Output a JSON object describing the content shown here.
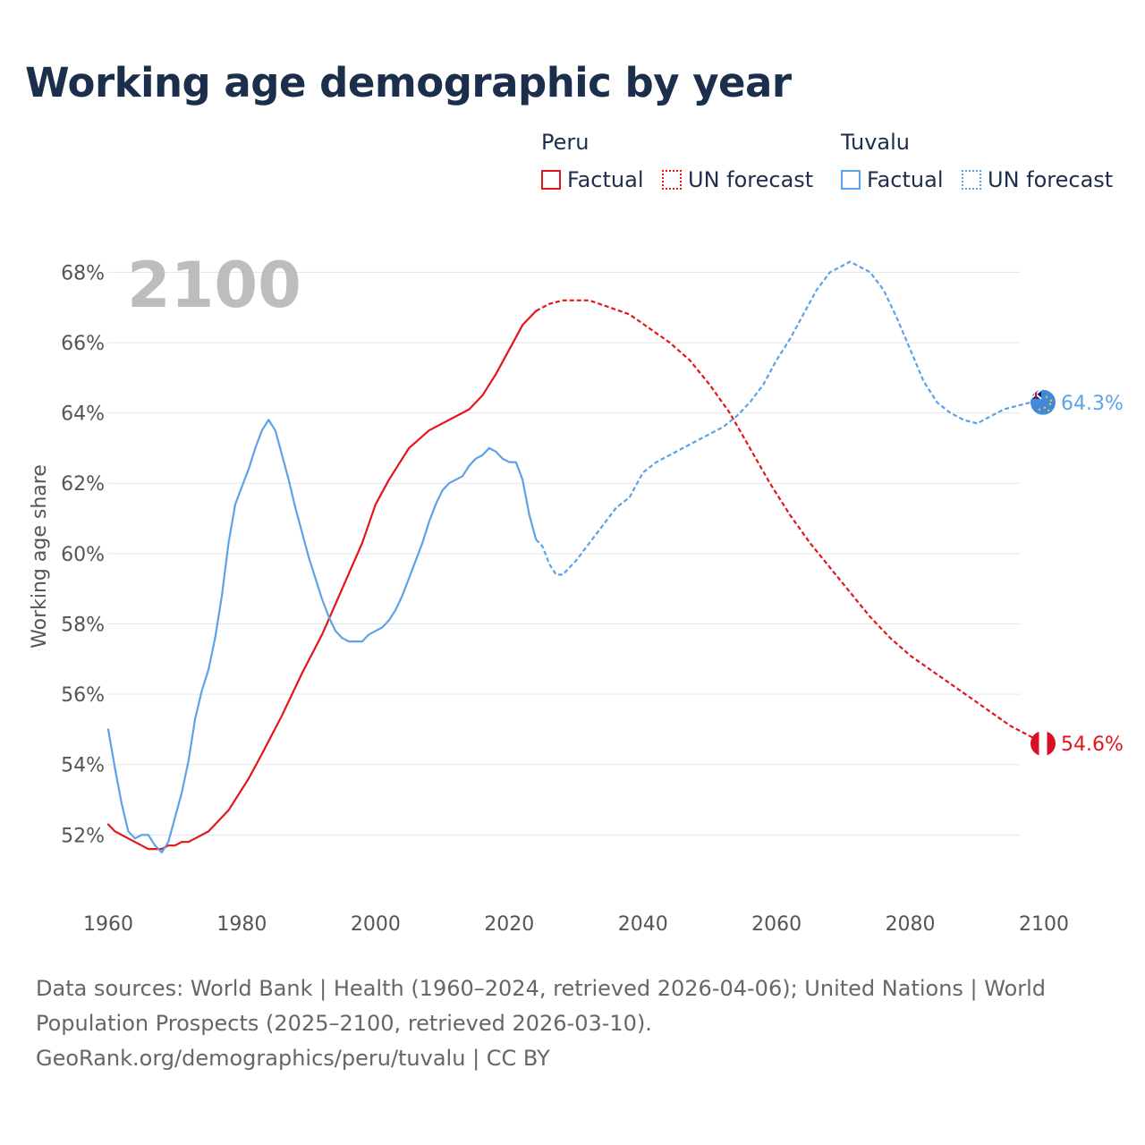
{
  "chart_data": {
    "type": "line",
    "title": "Working age demographic by year",
    "ylabel": "Working age share",
    "xlabel": "",
    "xlim": [
      1960,
      2100
    ],
    "ylim": [
      50.0,
      69.0
    ],
    "x_ticks": [
      "1960",
      "1980",
      "2000",
      "2020",
      "2040",
      "2060",
      "2080",
      "2100"
    ],
    "y_ticks": [
      {
        "value": 52,
        "label": "52%"
      },
      {
        "value": 54,
        "label": "54%"
      },
      {
        "value": 56,
        "label": "56%"
      },
      {
        "value": 58,
        "label": "58%"
      },
      {
        "value": 60,
        "label": "60%"
      },
      {
        "value": 62,
        "label": "62%"
      },
      {
        "value": 64,
        "label": "64%"
      },
      {
        "value": 66,
        "label": "66%"
      },
      {
        "value": 68,
        "label": "68%"
      }
    ],
    "current_year": "2100",
    "legend": {
      "peru_name": "Peru",
      "tuvalu_name": "Tuvalu",
      "factual_label": "Factual",
      "forecast_label": "UN forecast"
    },
    "series": [
      {
        "name": "Peru",
        "color": "#e3151b",
        "end_label": "54.6%",
        "factual": {
          "x": [
            1960,
            1961,
            1963,
            1965,
            1966,
            1967,
            1968,
            1969,
            1970,
            1971,
            1972,
            1973,
            1975,
            1978,
            1981,
            1983,
            1986,
            1989,
            1992,
            1995,
            1998,
            2000,
            2002,
            2005,
            2008,
            2012,
            2014,
            2016,
            2018,
            2020,
            2022,
            2024
          ],
          "y": [
            52.3,
            52.1,
            51.9,
            51.7,
            51.6,
            51.6,
            51.6,
            51.7,
            51.7,
            51.8,
            51.8,
            51.9,
            52.1,
            52.7,
            53.6,
            54.3,
            55.4,
            56.6,
            57.7,
            59.0,
            60.3,
            61.4,
            62.1,
            63.0,
            63.5,
            63.9,
            64.1,
            64.5,
            65.1,
            65.8,
            66.5,
            66.9
          ]
        },
        "forecast": {
          "x": [
            2024,
            2026,
            2028,
            2030,
            2032,
            2035,
            2038,
            2041,
            2044,
            2047,
            2050,
            2053,
            2056,
            2059,
            2062,
            2065,
            2068,
            2071,
            2074,
            2077,
            2080,
            2083,
            2086,
            2089,
            2092,
            2095,
            2098,
            2100
          ],
          "y": [
            66.9,
            67.1,
            67.2,
            67.2,
            67.2,
            67.0,
            66.8,
            66.4,
            66.0,
            65.5,
            64.8,
            64.0,
            63.0,
            62.0,
            61.1,
            60.3,
            59.6,
            58.9,
            58.2,
            57.6,
            57.1,
            56.7,
            56.3,
            55.9,
            55.5,
            55.1,
            54.8,
            54.6
          ]
        }
      },
      {
        "name": "Tuvalu",
        "color": "#5ba3e6",
        "end_label": "64.3%",
        "factual": {
          "x": [
            1960,
            1961,
            1962,
            1963,
            1964,
            1965,
            1966,
            1967,
            1968,
            1969,
            1970,
            1971,
            1972,
            1973,
            1974,
            1975,
            1976,
            1977,
            1978,
            1979,
            1980,
            1981,
            1982,
            1983,
            1984,
            1985,
            1986,
            1987,
            1988,
            1989,
            1990,
            1991,
            1992,
            1993,
            1994,
            1995,
            1996,
            1997,
            1998,
            1999,
            2000,
            2001,
            2002,
            2003,
            2004,
            2005,
            2006,
            2007,
            2008,
            2009,
            2010,
            2011,
            2012,
            2013,
            2014,
            2015,
            2016,
            2017,
            2018,
            2019,
            2020,
            2021,
            2022,
            2023,
            2024
          ],
          "y": [
            55.0,
            53.9,
            52.9,
            52.1,
            51.9,
            52.0,
            52.0,
            51.7,
            51.5,
            51.8,
            52.5,
            53.2,
            54.1,
            55.3,
            56.1,
            56.7,
            57.6,
            58.8,
            60.3,
            61.4,
            61.9,
            62.4,
            63.0,
            63.5,
            63.8,
            63.5,
            62.8,
            62.1,
            61.3,
            60.6,
            59.9,
            59.3,
            58.7,
            58.2,
            57.8,
            57.6,
            57.5,
            57.5,
            57.5,
            57.7,
            57.8,
            57.9,
            58.1,
            58.4,
            58.8,
            59.3,
            59.8,
            60.3,
            60.9,
            61.4,
            61.8,
            62.0,
            62.1,
            62.2,
            62.5,
            62.7,
            62.8,
            63.0,
            62.9,
            62.7,
            62.6,
            62.6,
            62.1,
            61.1,
            60.4
          ]
        },
        "forecast": {
          "x": [
            2024,
            2025,
            2026,
            2027,
            2028,
            2030,
            2032,
            2034,
            2036,
            2038,
            2040,
            2042,
            2044,
            2046,
            2048,
            2050,
            2052,
            2054,
            2056,
            2058,
            2060,
            2062,
            2064,
            2066,
            2068,
            2070,
            2071,
            2072,
            2074,
            2076,
            2078,
            2080,
            2082,
            2084,
            2086,
            2088,
            2090,
            2092,
            2094,
            2096,
            2098,
            2100
          ],
          "y": [
            60.4,
            60.2,
            59.7,
            59.4,
            59.4,
            59.8,
            60.3,
            60.8,
            61.3,
            61.6,
            62.3,
            62.6,
            62.8,
            63.0,
            63.2,
            63.4,
            63.6,
            63.9,
            64.3,
            64.8,
            65.5,
            66.1,
            66.8,
            67.5,
            68.0,
            68.2,
            68.3,
            68.2,
            68.0,
            67.5,
            66.7,
            65.8,
            64.9,
            64.3,
            64.0,
            63.8,
            63.7,
            63.9,
            64.1,
            64.2,
            64.3,
            64.3
          ]
        }
      }
    ]
  },
  "footer": {
    "source_line1": "Data sources: World Bank | Health (1960–2024, retrieved 2026-04-06); United Nations | World Population Prospects (2025–2100, retrieved 2026-03-10).",
    "source_line2": "GeoRank.org/demographics/peru/tuvalu | CC BY"
  }
}
